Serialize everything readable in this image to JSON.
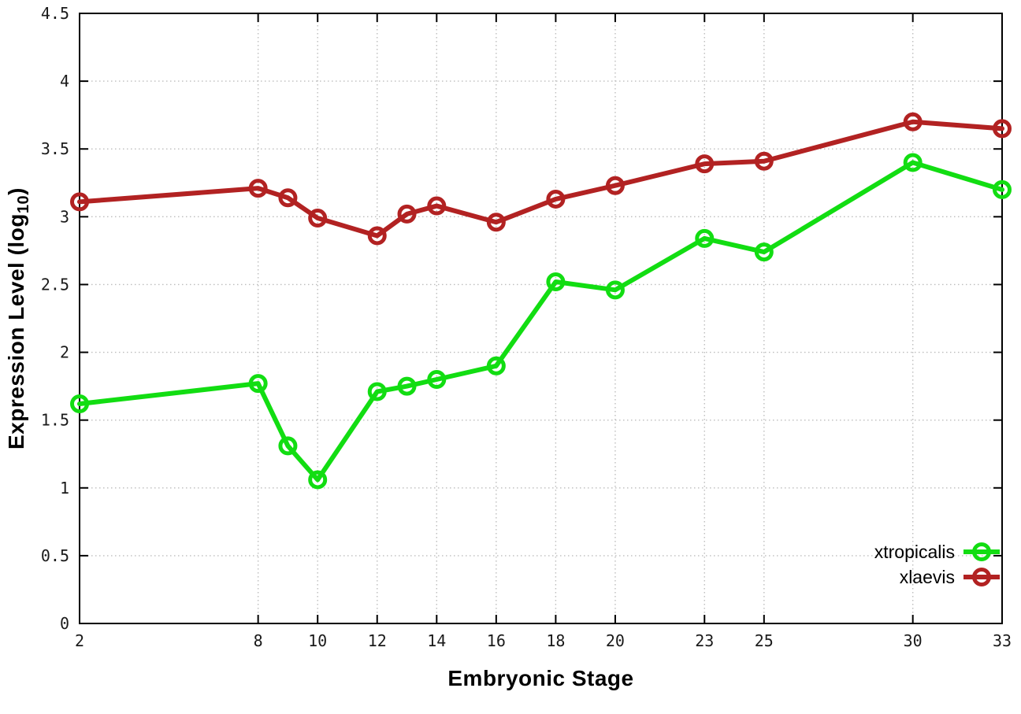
{
  "chart_data": {
    "type": "line",
    "title": "",
    "xlabel": "Embryonic Stage",
    "ylabel": {
      "main": "Expression Level (log",
      "sub": "10",
      "end": ")"
    },
    "xlim": [
      2,
      33
    ],
    "ylim": [
      0,
      4.5
    ],
    "grid": true,
    "legend_position": "bottom-right",
    "x_ticks": [
      2,
      8,
      10,
      12,
      14,
      16,
      18,
      20,
      23,
      25,
      30,
      33
    ],
    "y_ticks": [
      0,
      0.5,
      1,
      1.5,
      2,
      2.5,
      3,
      3.5,
      4,
      4.5
    ],
    "x": [
      2,
      8,
      9,
      10,
      12,
      13,
      14,
      16,
      18,
      20,
      23,
      25,
      30,
      33
    ],
    "series": [
      {
        "name": "xtropicalis",
        "color": "#12dd12",
        "values": [
          1.62,
          1.77,
          1.31,
          1.06,
          1.71,
          1.75,
          1.8,
          1.9,
          2.52,
          2.46,
          2.84,
          2.74,
          3.4,
          3.2
        ]
      },
      {
        "name": "xlaevis",
        "color": "#b22222",
        "values": [
          3.11,
          3.21,
          3.14,
          2.99,
          2.86,
          3.02,
          3.08,
          2.96,
          3.13,
          3.23,
          3.39,
          3.41,
          3.7,
          3.65
        ]
      }
    ]
  },
  "style_colors": {
    "border": "#000000",
    "grid": "#bdbdbd",
    "tick_text": "#1a1a1a"
  }
}
